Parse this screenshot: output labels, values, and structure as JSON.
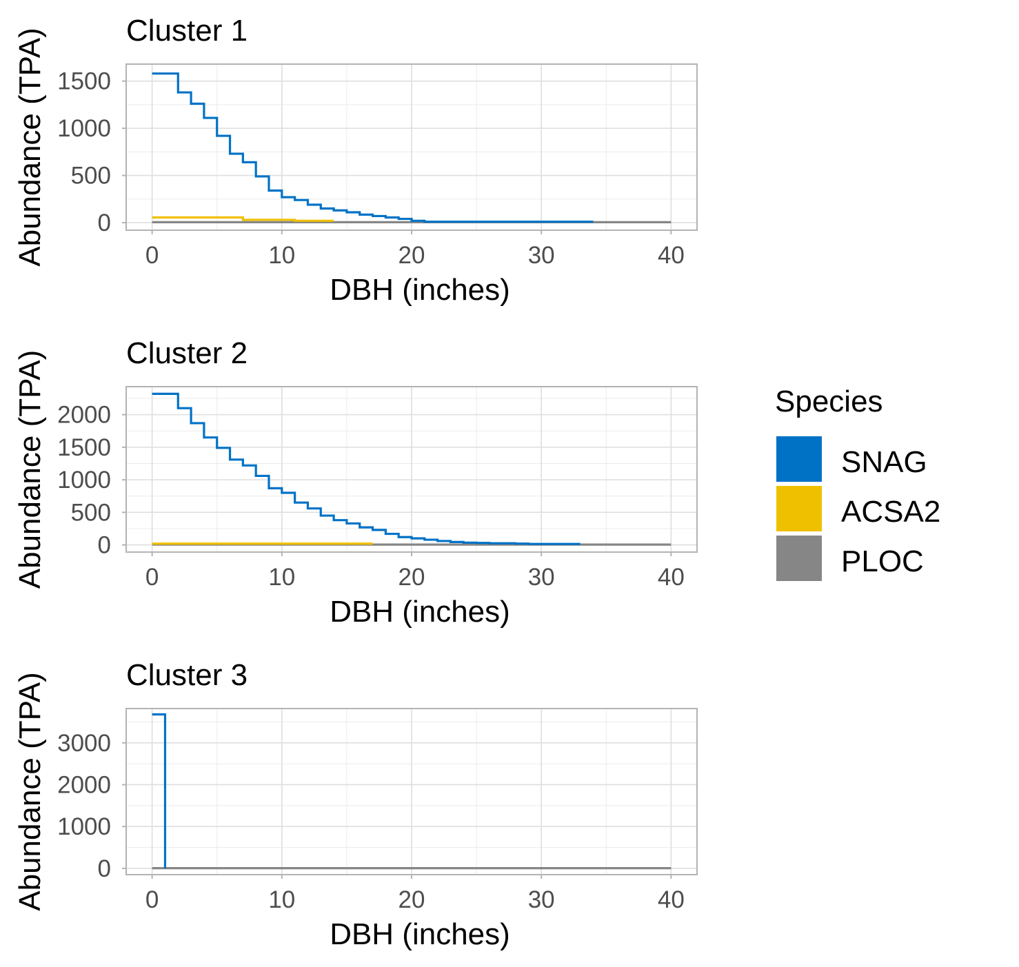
{
  "legend": {
    "title": "Species",
    "position": "right",
    "entries": [
      {
        "label": "SNAG",
        "color": "#0072C6"
      },
      {
        "label": "ACSA2",
        "color": "#EFC000"
      },
      {
        "label": "PLOC",
        "color": "#868686"
      }
    ]
  },
  "chart_data": [
    {
      "type": "line",
      "step": true,
      "title": "Cluster 1",
      "xlabel": "DBH (inches)",
      "ylabel": "Abundance (TPA)",
      "xlim": [
        -2,
        42
      ],
      "ylim": [
        -80,
        1680
      ],
      "xticks": [
        0,
        10,
        20,
        30,
        40
      ],
      "yticks": [
        0,
        500,
        1000,
        1500
      ],
      "series": [
        {
          "name": "SNAG",
          "color": "#0072C6",
          "x": [
            0,
            2,
            3,
            4,
            5,
            6,
            7,
            8,
            9,
            10,
            11,
            12,
            13,
            14,
            15,
            16,
            17,
            18,
            19,
            20,
            21,
            34
          ],
          "y": [
            1580,
            1380,
            1260,
            1110,
            920,
            730,
            640,
            490,
            340,
            270,
            240,
            190,
            150,
            130,
            110,
            85,
            70,
            55,
            40,
            20,
            10,
            10
          ]
        },
        {
          "name": "ACSA2",
          "color": "#EFC000",
          "x": [
            0,
            7,
            11,
            14
          ],
          "y": [
            55,
            30,
            20,
            20
          ]
        },
        {
          "name": "PLOC",
          "color": "#868686",
          "x": [
            0,
            40
          ],
          "y": [
            5,
            5
          ]
        }
      ]
    },
    {
      "type": "line",
      "step": true,
      "title": "Cluster 2",
      "xlabel": "DBH (inches)",
      "ylabel": "Abundance (TPA)",
      "xlim": [
        -2,
        42
      ],
      "ylim": [
        -110,
        2430
      ],
      "xticks": [
        0,
        10,
        20,
        30,
        40
      ],
      "yticks": [
        0,
        500,
        1000,
        1500,
        2000
      ],
      "series": [
        {
          "name": "SNAG",
          "color": "#0072C6",
          "x": [
            0,
            2,
            3,
            4,
            5,
            6,
            7,
            8,
            9,
            10,
            11,
            12,
            13,
            14,
            15,
            16,
            17,
            18,
            19,
            20,
            21,
            22,
            23,
            24,
            25,
            26,
            28,
            29,
            33
          ],
          "y": [
            2320,
            2100,
            1870,
            1650,
            1490,
            1310,
            1220,
            1060,
            870,
            800,
            650,
            560,
            450,
            380,
            330,
            270,
            230,
            170,
            120,
            100,
            80,
            60,
            45,
            35,
            30,
            25,
            20,
            15,
            15
          ]
        },
        {
          "name": "ACSA2",
          "color": "#EFC000",
          "x": [
            0,
            17
          ],
          "y": [
            20,
            20
          ]
        },
        {
          "name": "PLOC",
          "color": "#868686",
          "x": [
            0,
            40
          ],
          "y": [
            5,
            5
          ]
        }
      ]
    },
    {
      "type": "line",
      "step": true,
      "title": "Cluster 3",
      "xlabel": "DBH (inches)",
      "ylabel": "Abundance (TPA)",
      "xlim": [
        -2,
        42
      ],
      "ylim": [
        -150,
        3820
      ],
      "xticks": [
        0,
        10,
        20,
        30,
        40
      ],
      "yticks": [
        0,
        1000,
        2000,
        3000
      ],
      "series": [
        {
          "name": "SNAG",
          "color": "#0072C6",
          "x": [
            0,
            1,
            1
          ],
          "y": [
            3680,
            3680,
            0
          ]
        },
        {
          "name": "PLOC",
          "color": "#868686",
          "x": [
            0,
            40
          ],
          "y": [
            5,
            5
          ]
        }
      ]
    }
  ]
}
